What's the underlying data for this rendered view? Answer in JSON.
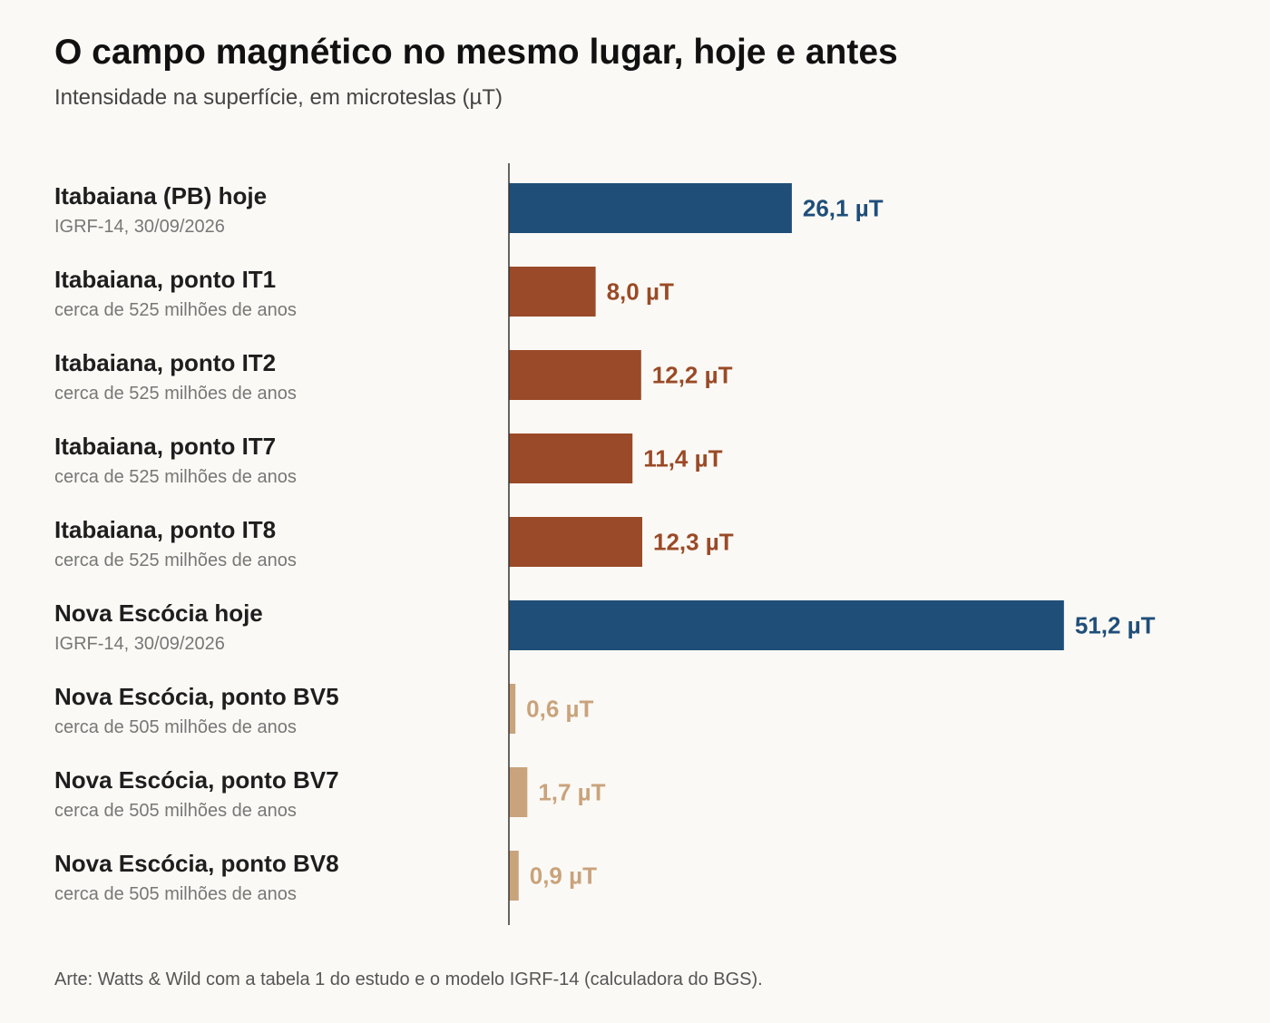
{
  "chart_data": {
    "type": "bar",
    "orientation": "horizontal",
    "title": "O campo magnético no mesmo lugar, hoje e antes",
    "subtitle": "Intensidade na superfície, em microteslas (µT)",
    "unit": "µT",
    "xlim": [
      0,
      60
    ],
    "grid": false,
    "categories": [
      "Itabaiana (PB) hoje",
      "Itabaiana, ponto IT1",
      "Itabaiana, ponto IT2",
      "Itabaiana, ponto IT7",
      "Itabaiana, ponto IT8",
      "Nova Escócia hoje",
      "Nova Escócia, ponto BV5",
      "Nova Escócia, ponto BV7",
      "Nova Escócia, ponto BV8"
    ],
    "sublabels": [
      "IGRF-14, 30/09/2026",
      "cerca de 525 milhões de anos",
      "cerca de 525 milhões de anos",
      "cerca de 525 milhões de anos",
      "cerca de 525 milhões de anos",
      "IGRF-14, 30/09/2026",
      "cerca de 505 milhões de anos",
      "cerca de 505 milhões de anos",
      "cerca de 505 milhões de anos"
    ],
    "values": [
      26.1,
      8.0,
      12.2,
      11.4,
      12.3,
      51.2,
      0.6,
      1.7,
      0.9
    ],
    "value_labels": [
      "26,1 µT",
      "8,0 µT",
      "12,2 µT",
      "11,4 µT",
      "12,3 µT",
      "51,2 µT",
      "0,6 µT",
      "1,7 µT",
      "0,9 µT"
    ],
    "colors": [
      "#1f4e79",
      "#9a4a28",
      "#9a4a28",
      "#9a4a28",
      "#9a4a28",
      "#1f4e79",
      "#c9a37c",
      "#c9a37c",
      "#c9a37c"
    ],
    "axis_color": "#333333"
  },
  "source": "Arte: Watts & Wild com a tabela 1 do estudo e o modelo IGRF-14 (calculadora do BGS)."
}
